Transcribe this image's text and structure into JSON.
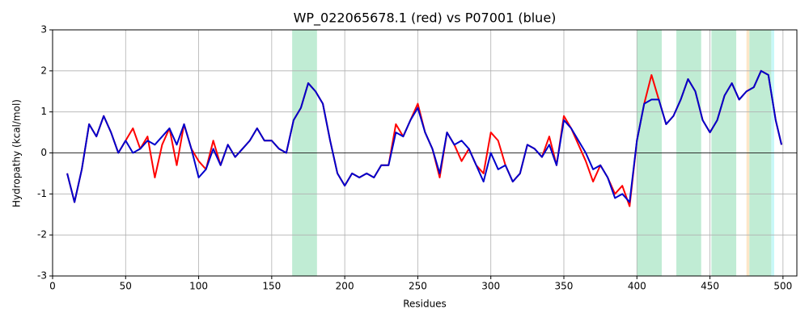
{
  "chart_data": {
    "type": "line",
    "title": "WP_022065678.1 (red) vs P07001 (blue)",
    "x_label": "Residues",
    "y_label": "Hydropathy (kcal/mol)",
    "x": [
      10,
      15,
      20,
      25,
      30,
      35,
      40,
      45,
      50,
      55,
      60,
      65,
      70,
      75,
      80,
      85,
      90,
      95,
      100,
      105,
      110,
      115,
      120,
      125,
      130,
      135,
      140,
      145,
      150,
      155,
      160,
      165,
      170,
      175,
      180,
      185,
      190,
      195,
      200,
      205,
      210,
      215,
      220,
      225,
      230,
      235,
      240,
      245,
      250,
      255,
      260,
      265,
      270,
      275,
      280,
      285,
      290,
      295,
      300,
      305,
      310,
      315,
      320,
      325,
      330,
      335,
      340,
      345,
      350,
      355,
      360,
      365,
      370,
      375,
      380,
      385,
      390,
      395,
      400,
      405,
      410,
      415,
      420,
      425,
      430,
      435,
      440,
      445,
      450,
      455,
      460,
      465,
      470,
      475,
      480,
      485,
      490,
      495,
      499
    ],
    "series": [
      {
        "name": "WP_022065678.1",
        "color": "#ff0000",
        "values": [
          -0.5,
          -1.2,
          -0.4,
          0.7,
          0.4,
          0.9,
          0.5,
          0.0,
          0.3,
          0.6,
          0.1,
          0.4,
          -0.6,
          0.2,
          0.6,
          -0.3,
          0.7,
          0.1,
          -0.2,
          -0.4,
          0.3,
          -0.3,
          0.2,
          -0.1,
          0.1,
          0.3,
          0.6,
          0.3,
          0.3,
          0.1,
          0.0,
          0.8,
          1.1,
          1.7,
          1.5,
          1.2,
          0.3,
          -0.5,
          -0.8,
          -0.5,
          -0.6,
          -0.5,
          -0.6,
          -0.3,
          -0.3,
          0.7,
          0.4,
          0.8,
          1.2,
          0.5,
          0.1,
          -0.6,
          0.5,
          0.2,
          -0.2,
          0.1,
          -0.3,
          -0.5,
          0.5,
          0.3,
          -0.3,
          -0.7,
          -0.5,
          0.2,
          0.1,
          -0.1,
          0.4,
          -0.3,
          0.9,
          0.6,
          0.2,
          -0.2,
          -0.7,
          -0.3,
          -0.6,
          -1.0,
          -0.8,
          -1.3,
          0.3,
          1.2,
          1.9,
          1.3,
          0.7,
          0.9,
          1.3,
          1.8,
          1.5,
          0.8,
          0.5,
          0.8,
          1.4,
          1.7,
          1.3,
          1.5,
          1.6,
          2.0,
          1.9,
          0.8,
          0.2
        ]
      },
      {
        "name": "P07001",
        "color": "#0000cc",
        "values": [
          -0.5,
          -1.2,
          -0.4,
          0.7,
          0.4,
          0.9,
          0.5,
          0.0,
          0.3,
          0.0,
          0.1,
          0.3,
          0.2,
          0.4,
          0.6,
          0.2,
          0.7,
          0.1,
          -0.6,
          -0.4,
          0.1,
          -0.3,
          0.2,
          -0.1,
          0.1,
          0.3,
          0.6,
          0.3,
          0.3,
          0.1,
          0.0,
          0.8,
          1.1,
          1.7,
          1.5,
          1.2,
          0.3,
          -0.5,
          -0.8,
          -0.5,
          -0.6,
          -0.5,
          -0.6,
          -0.3,
          -0.3,
          0.5,
          0.4,
          0.8,
          1.1,
          0.5,
          0.1,
          -0.5,
          0.5,
          0.2,
          0.3,
          0.1,
          -0.3,
          -0.7,
          0.0,
          -0.4,
          -0.3,
          -0.7,
          -0.5,
          0.2,
          0.1,
          -0.1,
          0.2,
          -0.3,
          0.8,
          0.6,
          0.3,
          0.0,
          -0.4,
          -0.3,
          -0.6,
          -1.1,
          -1.0,
          -1.2,
          0.3,
          1.2,
          1.3,
          1.3,
          0.7,
          0.9,
          1.3,
          1.8,
          1.5,
          0.8,
          0.5,
          0.8,
          1.4,
          1.7,
          1.3,
          1.5,
          1.6,
          2.0,
          1.9,
          0.8,
          0.2
        ]
      }
    ],
    "spans": [
      {
        "start": 164,
        "end": 181,
        "color": "#c0ecd4"
      },
      {
        "start": 400,
        "end": 417,
        "color": "#c0ecd4"
      },
      {
        "start": 427,
        "end": 444,
        "color": "#c0ecd4"
      },
      {
        "start": 451,
        "end": 468,
        "color": "#c0ecd4"
      },
      {
        "start": 475,
        "end": 477,
        "color": "#fde6c8"
      },
      {
        "start": 477,
        "end": 492,
        "color": "#c0ecd4"
      },
      {
        "start": 492,
        "end": 494,
        "color": "#c8f8f8"
      }
    ],
    "xlim": [
      0,
      509.5
    ],
    "ylim": [
      -3,
      3
    ],
    "xticks": [
      0,
      50,
      100,
      150,
      200,
      250,
      300,
      350,
      400,
      450,
      500
    ],
    "yticks": [
      -3,
      -2,
      -1,
      0,
      1,
      2,
      3
    ],
    "grid": true
  }
}
